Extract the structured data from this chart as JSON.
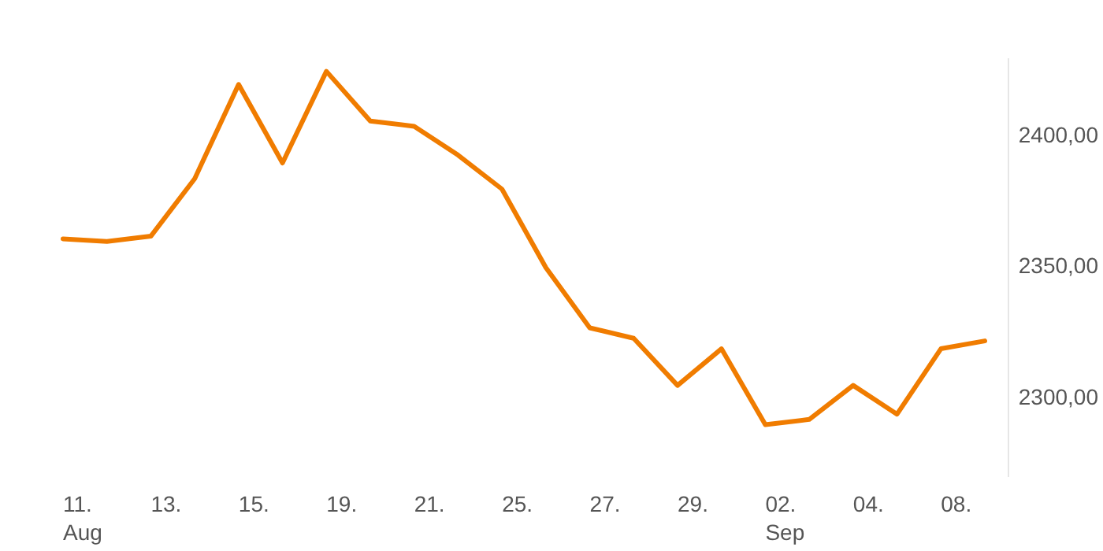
{
  "chart_data": {
    "type": "line",
    "categories": [
      "11.\nAug",
      null,
      "13.",
      null,
      "15.",
      null,
      "19.",
      null,
      "21.",
      null,
      "25.",
      null,
      "27.",
      null,
      "29.",
      null,
      "02.\nSep",
      null,
      "04.",
      null,
      "08.",
      null
    ],
    "ylim": [
      2270,
      2430
    ],
    "series": [
      {
        "color": "#f07c00",
        "values": [
          2361,
          2360,
          2362,
          2384,
          2420,
          2390,
          2425,
          2406,
          2404,
          2393,
          2380,
          2350,
          2327,
          2323,
          2305,
          2319,
          2290,
          2292,
          2305,
          2294,
          2319,
          2322
        ]
      }
    ],
    "yticks": [
      {
        "value": 2300,
        "label": "2300,00"
      },
      {
        "value": 2350,
        "label": "2350,00"
      },
      {
        "value": 2400,
        "label": "2400,00"
      }
    ],
    "grid": false,
    "marker": "none",
    "line_style": "solid"
  }
}
